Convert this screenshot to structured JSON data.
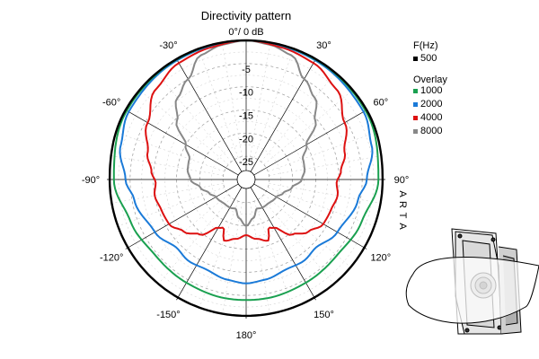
{
  "chart_data": {
    "type": "polar-line",
    "title": "Directivity pattern",
    "radial_unit_label": "0°/ 0 dB",
    "radial_ticks": [
      "-5",
      "-10",
      "-15",
      "-20",
      "-25"
    ],
    "radial_values": [
      -5,
      -10,
      -15,
      -20,
      -25
    ],
    "radial_range": [
      -30,
      0
    ],
    "angle_ticks": [
      {
        "value": -30,
        "label": "-30°"
      },
      {
        "value": 30,
        "label": "30°"
      },
      {
        "value": -60,
        "label": "-60°"
      },
      {
        "value": 60,
        "label": "60°"
      },
      {
        "value": -90,
        "label": "-90°"
      },
      {
        "value": 90,
        "label": "90°"
      },
      {
        "value": -120,
        "label": "-120°"
      },
      {
        "value": 120,
        "label": "120°"
      },
      {
        "value": -150,
        "label": "-150°"
      },
      {
        "value": 150,
        "label": "150°"
      },
      {
        "value": 180,
        "label": "180°"
      }
    ],
    "grid": true,
    "legend": {
      "main_title": "F(Hz)",
      "overlay_title": "Overlay",
      "placement": "right"
    },
    "vertical_text": "ARTA",
    "series": [
      {
        "name": "500",
        "color": "#000000",
        "group": "main",
        "points": [
          [
            0,
            0
          ],
          [
            30,
            0
          ],
          [
            60,
            0
          ],
          [
            90,
            -0.6
          ],
          [
            120,
            -0.6
          ],
          [
            150,
            -0.6
          ],
          [
            180,
            -0.6
          ],
          [
            210,
            -0.6
          ],
          [
            240,
            -0.6
          ],
          [
            270,
            -0.6
          ],
          [
            300,
            0
          ],
          [
            330,
            0
          ]
        ]
      },
      {
        "name": "1000",
        "color": "#1aa050",
        "group": "overlay",
        "points": [
          [
            0,
            0
          ],
          [
            30,
            -0.1
          ],
          [
            60,
            -0.3
          ],
          [
            90,
            -1.5
          ],
          [
            110,
            -3.5
          ],
          [
            130,
            -4.5
          ],
          [
            150,
            -4.3
          ],
          [
            170,
            -4.0
          ],
          [
            180,
            -4.0
          ],
          [
            190,
            -4.0
          ],
          [
            210,
            -4.3
          ],
          [
            230,
            -4.5
          ],
          [
            250,
            -3.5
          ],
          [
            270,
            -1.5
          ],
          [
            300,
            -0.3
          ],
          [
            330,
            -0.1
          ]
        ]
      },
      {
        "name": "2000",
        "color": "#1a7ad8",
        "group": "overlay",
        "points": [
          [
            0,
            0
          ],
          [
            30,
            -0.3
          ],
          [
            60,
            -0.8
          ],
          [
            75,
            -2.0
          ],
          [
            90,
            -4.0
          ],
          [
            100,
            -5.5
          ],
          [
            120,
            -7.3
          ],
          [
            135,
            -9.0
          ],
          [
            145,
            -8.5
          ],
          [
            155,
            -8.8
          ],
          [
            170,
            -8.0
          ],
          [
            180,
            -7.6
          ],
          [
            190,
            -8.0
          ],
          [
            205,
            -8.8
          ],
          [
            215,
            -8.5
          ],
          [
            225,
            -9.0
          ],
          [
            240,
            -7.3
          ],
          [
            260,
            -5.5
          ],
          [
            270,
            -4.0
          ],
          [
            285,
            -2.0
          ],
          [
            300,
            -0.8
          ],
          [
            330,
            -0.3
          ]
        ]
      },
      {
        "name": "4000",
        "color": "#dd1111",
        "group": "overlay",
        "points": [
          [
            0,
            0
          ],
          [
            15,
            -0.5
          ],
          [
            30,
            -1.0
          ],
          [
            45,
            -2.5
          ],
          [
            60,
            -5.5
          ],
          [
            75,
            -8.0
          ],
          [
            85,
            -9.5
          ],
          [
            92,
            -10.5
          ],
          [
            100,
            -10.0
          ],
          [
            110,
            -10.6
          ],
          [
            120,
            -10.8
          ],
          [
            130,
            -12.5
          ],
          [
            140,
            -14.5
          ],
          [
            150,
            -18.0
          ],
          [
            155,
            -18.5
          ],
          [
            160,
            -16.0
          ],
          [
            170,
            -17.0
          ],
          [
            180,
            -18.0
          ],
          [
            190,
            -17.0
          ],
          [
            200,
            -16.0
          ],
          [
            205,
            -18.5
          ],
          [
            210,
            -18.0
          ],
          [
            220,
            -14.5
          ],
          [
            230,
            -12.5
          ],
          [
            240,
            -10.8
          ],
          [
            250,
            -10.6
          ],
          [
            260,
            -10.0
          ],
          [
            268,
            -10.5
          ],
          [
            275,
            -9.5
          ],
          [
            285,
            -8.0
          ],
          [
            300,
            -5.5
          ],
          [
            315,
            -2.5
          ],
          [
            330,
            -1.0
          ],
          [
            345,
            -0.5
          ]
        ]
      },
      {
        "name": "8000",
        "color": "#888888",
        "group": "overlay",
        "points": [
          [
            0,
            0
          ],
          [
            10,
            -0.5
          ],
          [
            20,
            -1.5
          ],
          [
            30,
            -5.0
          ],
          [
            40,
            -7.0
          ],
          [
            50,
            -10.5
          ],
          [
            60,
            -15.0
          ],
          [
            70,
            -17.0
          ],
          [
            80,
            -17.2
          ],
          [
            90,
            -18.0
          ],
          [
            100,
            -20.0
          ],
          [
            110,
            -21.5
          ],
          [
            120,
            -22.5
          ],
          [
            140,
            -23.0
          ],
          [
            150,
            -23.0
          ],
          [
            160,
            -23.3
          ],
          [
            170,
            -21.5
          ],
          [
            180,
            -20.0
          ],
          [
            190,
            -21.5
          ],
          [
            200,
            -23.3
          ],
          [
            210,
            -23.0
          ],
          [
            220,
            -23.0
          ],
          [
            240,
            -22.5
          ],
          [
            250,
            -21.5
          ],
          [
            260,
            -20.0
          ],
          [
            270,
            -18.0
          ],
          [
            280,
            -17.2
          ],
          [
            290,
            -17.0
          ],
          [
            300,
            -15.0
          ],
          [
            310,
            -10.5
          ],
          [
            320,
            -7.0
          ],
          [
            330,
            -5.0
          ],
          [
            340,
            -1.5
          ],
          [
            350,
            -0.5
          ]
        ]
      }
    ]
  }
}
